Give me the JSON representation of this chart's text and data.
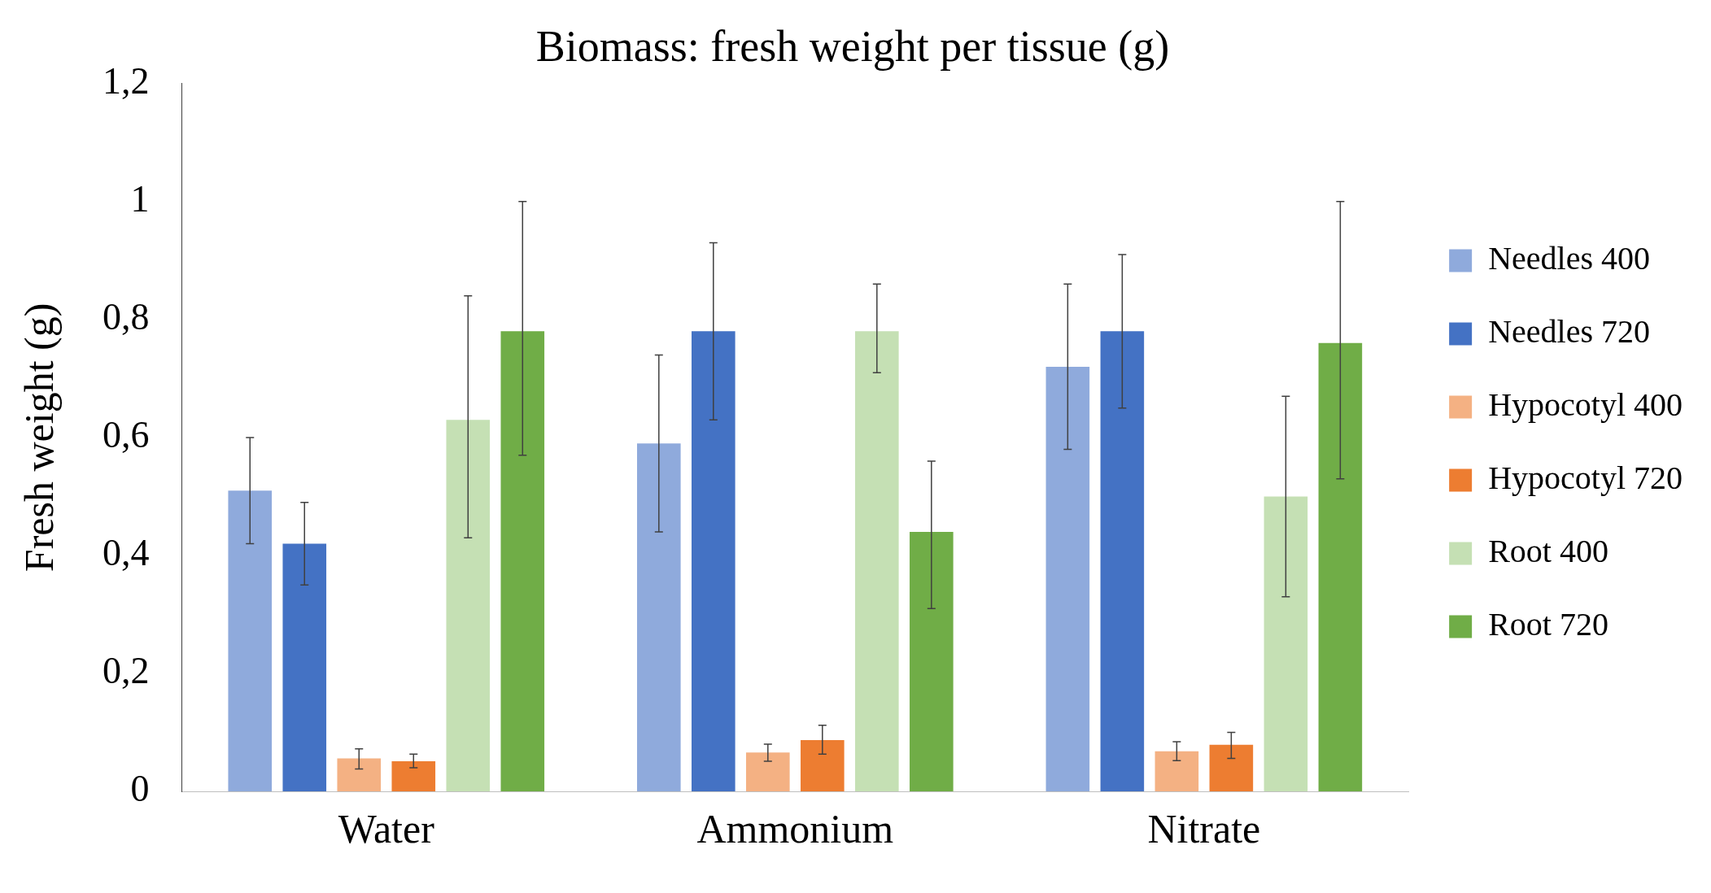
{
  "chart_data": {
    "type": "bar",
    "title": "Biomass: fresh weight per tissue (g)",
    "ylabel": "Fresh weight (g)",
    "categories": [
      "Water",
      "Ammonium",
      "Nitrate"
    ],
    "series": [
      {
        "name": "Needles 400",
        "color": "#8faadc",
        "values": [
          0.51,
          0.59,
          0.72
        ],
        "errors": [
          [
            0.42,
            0.6
          ],
          [
            0.44,
            0.74
          ],
          [
            0.58,
            0.86
          ]
        ]
      },
      {
        "name": "Needles 720",
        "color": "#4472c4",
        "values": [
          0.42,
          0.78,
          0.78
        ],
        "errors": [
          [
            0.35,
            0.49
          ],
          [
            0.63,
            0.93
          ],
          [
            0.65,
            0.91
          ]
        ]
      },
      {
        "name": "Hypocotyl 400",
        "color": "#f4b183",
        "values": [
          0.056,
          0.066,
          0.068
        ],
        "errors": [
          [
            0.038,
            0.072
          ],
          [
            0.051,
            0.08
          ],
          [
            0.052,
            0.084
          ]
        ]
      },
      {
        "name": "Hypocotyl 720",
        "color": "#ed7d31",
        "values": [
          0.051,
          0.087,
          0.079
        ],
        "errors": [
          [
            0.04,
            0.063
          ],
          [
            0.063,
            0.112
          ],
          [
            0.056,
            0.1
          ]
        ]
      },
      {
        "name": "Root 400",
        "color": "#c5e0b4",
        "values": [
          0.63,
          0.78,
          0.5
        ],
        "errors": [
          [
            0.43,
            0.84
          ],
          [
            0.71,
            0.86
          ],
          [
            0.33,
            0.67
          ]
        ]
      },
      {
        "name": "Root 720",
        "color": "#70ad47",
        "values": [
          0.78,
          0.44,
          0.76
        ],
        "errors": [
          [
            0.57,
            1.0
          ],
          [
            0.31,
            0.56
          ],
          [
            0.53,
            1.0
          ]
        ]
      }
    ],
    "ylim": [
      0,
      1.2
    ],
    "yticks": [
      0,
      {
        "value": 0.2,
        "label": "0,2"
      },
      {
        "value": 0.4,
        "label": "0,4"
      },
      {
        "value": 0.6,
        "label": "0,6"
      },
      {
        "value": 0.8,
        "label": "0,8"
      },
      1,
      {
        "value": 1.2,
        "label": "1,2"
      }
    ],
    "grid": false,
    "legend": "right"
  }
}
